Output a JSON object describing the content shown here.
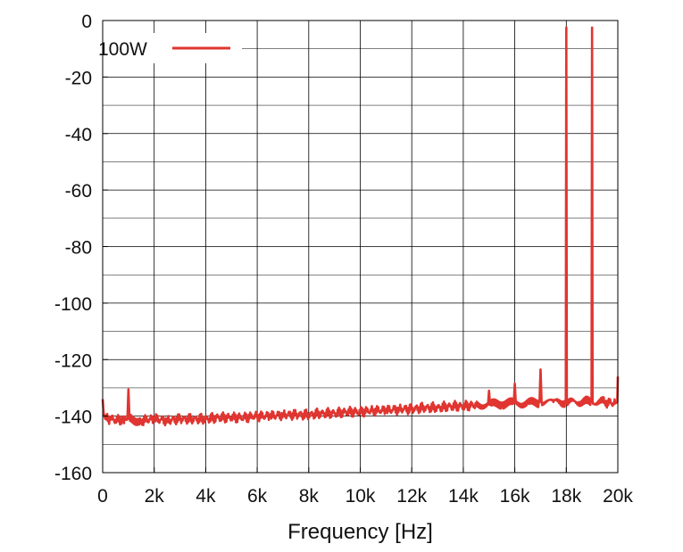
{
  "chart_data": {
    "type": "line",
    "title": "",
    "xlabel": "Frequency [Hz]",
    "ylabel": "",
    "xlim": [
      0,
      20000
    ],
    "ylim": [
      -160,
      0
    ],
    "grid": true,
    "legend_position": "top-left",
    "x_ticks": [
      {
        "value": 0,
        "label": "0"
      },
      {
        "value": 2000,
        "label": "2k"
      },
      {
        "value": 4000,
        "label": "4k"
      },
      {
        "value": 6000,
        "label": "6k"
      },
      {
        "value": 8000,
        "label": "8k"
      },
      {
        "value": 10000,
        "label": "10k"
      },
      {
        "value": 12000,
        "label": "12k"
      },
      {
        "value": 14000,
        "label": "14k"
      },
      {
        "value": 16000,
        "label": "16k"
      },
      {
        "value": 18000,
        "label": "18k"
      },
      {
        "value": 20000,
        "label": "20k"
      }
    ],
    "y_ticks": [
      {
        "value": 0,
        "label": "0"
      },
      {
        "value": -20,
        "label": "-20"
      },
      {
        "value": -40,
        "label": "-40"
      },
      {
        "value": -60,
        "label": "-60"
      },
      {
        "value": -80,
        "label": "-80"
      },
      {
        "value": -100,
        "label": "-100"
      },
      {
        "value": -120,
        "label": "-120"
      },
      {
        "value": -140,
        "label": "-140"
      },
      {
        "value": -160,
        "label": "-160"
      }
    ],
    "series": [
      {
        "name": "100W",
        "color": "#e03530",
        "points": [
          [
            0,
            -134
          ],
          [
            40,
            -139
          ],
          [
            100,
            -141
          ],
          [
            300,
            -141
          ],
          [
            500,
            -141.5
          ],
          [
            800,
            -141
          ],
          [
            960,
            -141
          ],
          [
            1000,
            -130.5
          ],
          [
            1040,
            -141
          ],
          [
            1500,
            -141.5
          ],
          [
            2000,
            -141
          ],
          [
            2500,
            -141.5
          ],
          [
            3000,
            -141
          ],
          [
            3500,
            -141
          ],
          [
            4000,
            -141
          ],
          [
            4500,
            -140.5
          ],
          [
            5000,
            -140.5
          ],
          [
            5500,
            -140.5
          ],
          [
            6000,
            -140
          ],
          [
            6500,
            -140
          ],
          [
            7000,
            -139.5
          ],
          [
            7500,
            -139.5
          ],
          [
            8000,
            -139.5
          ],
          [
            8500,
            -139
          ],
          [
            9000,
            -139
          ],
          [
            9500,
            -138.5
          ],
          [
            10000,
            -138.5
          ],
          [
            10500,
            -138
          ],
          [
            11000,
            -138
          ],
          [
            11500,
            -137.5
          ],
          [
            12000,
            -137.5
          ],
          [
            12500,
            -137
          ],
          [
            13000,
            -137
          ],
          [
            13500,
            -136.5
          ],
          [
            14000,
            -136.5
          ],
          [
            14500,
            -136
          ],
          [
            14960,
            -136
          ],
          [
            15000,
            -131
          ],
          [
            15040,
            -136
          ],
          [
            15500,
            -135.5
          ],
          [
            15960,
            -135.5
          ],
          [
            16000,
            -128.5
          ],
          [
            16040,
            -135.5
          ],
          [
            16500,
            -135.5
          ],
          [
            16960,
            -135
          ],
          [
            17000,
            -123.5
          ],
          [
            17040,
            -135
          ],
          [
            17500,
            -135
          ],
          [
            17980,
            -135
          ],
          [
            18000,
            -2.5
          ],
          [
            18020,
            -135
          ],
          [
            18500,
            -135
          ],
          [
            18980,
            -135
          ],
          [
            19000,
            -2.5
          ],
          [
            19020,
            -135
          ],
          [
            19500,
            -135
          ],
          [
            19900,
            -135.5
          ],
          [
            19980,
            -135
          ],
          [
            20000,
            -126
          ]
        ]
      }
    ]
  }
}
